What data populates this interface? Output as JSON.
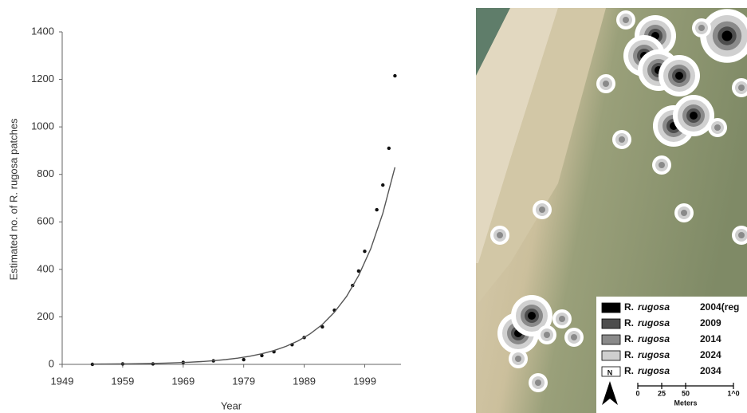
{
  "chart_data": {
    "type": "scatter",
    "x_label": "Year",
    "y_label": "Estimated no. of R. rugosa patches",
    "xlim": [
      1949,
      2005
    ],
    "xticks": [
      1949,
      1959,
      1969,
      1979,
      1989,
      1999
    ],
    "ylim": [
      0,
      1400
    ],
    "yticks": [
      0,
      200,
      400,
      600,
      800,
      1000,
      1200,
      1400
    ],
    "series": [
      {
        "type": "scatter",
        "color": "#111111",
        "x": [
          1954,
          1959,
          1964,
          1969,
          1974,
          1979,
          1982,
          1984,
          1987,
          1989,
          1992,
          1994,
          1997,
          1998,
          1999,
          2001,
          2002,
          2003,
          2004
        ],
        "values": [
          0,
          2,
          2,
          8,
          15,
          20,
          37,
          53,
          83,
          113,
          158,
          228,
          332,
          393,
          476,
          651,
          755,
          910,
          1215
        ]
      },
      {
        "type": "line",
        "color": "#555555",
        "x": [
          1954,
          1956,
          1958,
          1960,
          1962,
          1964,
          1966,
          1968,
          1970,
          1972,
          1974,
          1976,
          1978,
          1980,
          1982,
          1984,
          1986,
          1988,
          1990,
          1992,
          1994,
          1996,
          1998,
          2000,
          2002,
          2004
        ],
        "values": [
          1.08,
          1.41,
          1.84,
          2.39,
          3.12,
          4.07,
          5.31,
          6.93,
          9.04,
          11.8,
          15.4,
          20.1,
          26.2,
          34.2,
          44.6,
          58.2,
          75.8,
          98.9,
          129,
          168,
          220,
          286,
          374,
          487,
          636,
          830
        ]
      }
    ]
  },
  "map": {
    "legend": [
      {
        "genus": "R.",
        "species": "rugosa",
        "year": "2004(reg",
        "color": "#000000"
      },
      {
        "genus": "R.",
        "species": "rugosa",
        "year": "2009",
        "color": "#4d4d4d"
      },
      {
        "genus": "R.",
        "species": "rugosa",
        "year": "2014",
        "color": "#8a8a8a"
      },
      {
        "genus": "R.",
        "species": "rugosa",
        "year": "2024",
        "color": "#cfcfcf"
      },
      {
        "genus": "R.",
        "species": "rugosa",
        "year": "2034",
        "color": "#ffffff"
      }
    ],
    "north": "N",
    "scale_ticks": [
      "0",
      "25",
      "50",
      "1^0"
    ],
    "scale_unit": "Meters"
  }
}
